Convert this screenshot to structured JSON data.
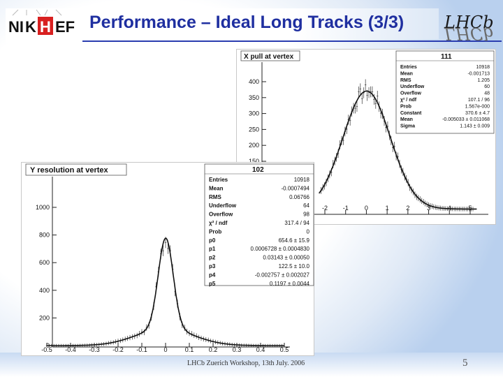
{
  "slide": {
    "title": "Performance – Ideal Long Tracks (3/3)",
    "footer": "LHCb Zuerich Workshop, 13th July. 2006",
    "page_number": "5",
    "logos": {
      "left": "NIKHEF",
      "right": "LHCb"
    },
    "colors": {
      "title": "#1f2fa0",
      "accent": "#2a3db0"
    }
  },
  "x_pull": {
    "title": "X pull at vertex",
    "id": "111",
    "stats": [
      {
        "label": "Entries",
        "value": "10918"
      },
      {
        "label": "Mean",
        "value": "-0.001713"
      },
      {
        "label": "RMS",
        "value": "1.205"
      },
      {
        "label": "Underflow",
        "value": "60"
      },
      {
        "label": "Overflow",
        "value": "48"
      },
      {
        "label": "χ² / ndf",
        "value": "107.1 / 96"
      },
      {
        "label": "Prob",
        "value": "1.567e-000"
      },
      {
        "label": "Constant",
        "value": "370.6 ± 4.7"
      },
      {
        "label": "Mean",
        "value": "-0.005033 ± 0.011068"
      },
      {
        "label": "Sigma",
        "value": "1.143 ± 0.009"
      }
    ],
    "y_ticks": [
      "400",
      "350",
      "300",
      "250",
      "200",
      "150"
    ],
    "x_ticks": [
      "-2",
      "-1",
      "0",
      "1",
      "2",
      "3",
      "4",
      "5"
    ]
  },
  "y_res": {
    "title": "Y resolution at vertex",
    "id": "102",
    "stats": [
      {
        "label": "Entries",
        "value": "10918"
      },
      {
        "label": "Mean",
        "value": "-0.0007494"
      },
      {
        "label": "RMS",
        "value": "0.06766"
      },
      {
        "label": "Underflow",
        "value": "64"
      },
      {
        "label": "Overflow",
        "value": "98"
      },
      {
        "label": "χ² / ndf",
        "value": "317.4 / 94"
      },
      {
        "label": "Prob",
        "value": "0"
      },
      {
        "label": "p0",
        "value": "654.6 ± 15.9"
      },
      {
        "label": "p1",
        "value": "0.0006728 ± 0.0004830"
      },
      {
        "label": "p2",
        "value": "0.03143 ± 0.00050"
      },
      {
        "label": "p3",
        "value": "122.5 ± 10.0"
      },
      {
        "label": "p4",
        "value": "-0.002757 ± 0.002027"
      },
      {
        "label": "p5",
        "value": "0.1197 ± 0.0044"
      }
    ],
    "y_ticks": [
      "1000",
      "800",
      "600",
      "400",
      "200",
      "0"
    ],
    "x_ticks": [
      "-0.5",
      "-0.4",
      "-0.3",
      "-0.2",
      "-0.1",
      "0",
      "0.1",
      "0.2",
      "0.3",
      "0.4",
      "0.5"
    ]
  }
}
